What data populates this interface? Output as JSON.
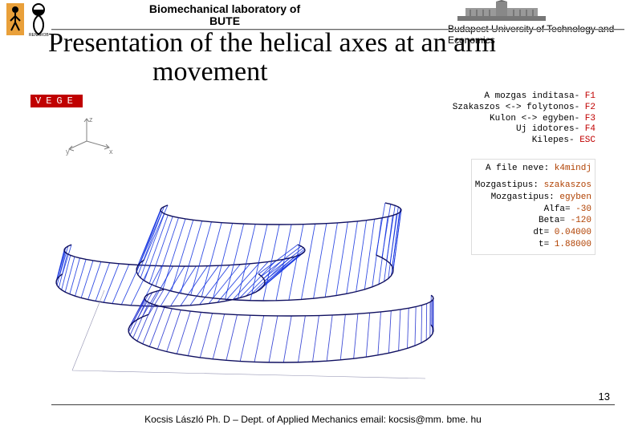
{
  "colors": {
    "vege_bg": "#c00000",
    "vege_fg": "#ffffff",
    "fkey": "#c00000",
    "kval": "#b04000",
    "axis_line": "#808080",
    "axis_label": "#808080",
    "helix_blue": "#1030e0",
    "helix_dark": "#101060",
    "grid": "#9090b0",
    "border": "#cccccc"
  },
  "header": {
    "lab_line1": "Biomechanical laboratory of",
    "lab_line2": "BUTE",
    "institution": "Budapest University of Technology and Economics"
  },
  "title": {
    "line1": "Presentation of the helical axes at an arm",
    "line2": "movement"
  },
  "figure": {
    "vege_label": "VEGE",
    "axis_labels": {
      "x": "x",
      "y": "y",
      "z": "z"
    },
    "legend_top": [
      {
        "label": "A mozgas inditasa-",
        "key": "F1"
      },
      {
        "label": "Szakaszos <-> folytonos-",
        "key": "F2"
      },
      {
        "label": "Kulon <-> egyben-",
        "key": "F3"
      },
      {
        "label": "Uj idotores-",
        "key": "F4"
      },
      {
        "label": "Kilepes-",
        "key": "ESC"
      }
    ],
    "legend_bottom": {
      "file_label": "A file neve:",
      "file_value": "k4mindj",
      "params": [
        {
          "label": "Mozgastipus:",
          "value": "szakaszos"
        },
        {
          "label": "Mozgastipus:",
          "value": "egyben"
        },
        {
          "label": "Alfa=",
          "value": "-30"
        },
        {
          "label": "Beta=",
          "value": "-120"
        },
        {
          "label": "dt=",
          "value": "0.04000"
        },
        {
          "label": "t=",
          "value": "1.88000"
        }
      ]
    },
    "helix": {
      "type": "ruled-surface",
      "surfaces": 3,
      "strokes_per_surface": 40,
      "line_width": 0.9,
      "bands": [
        {
          "cx1": 150,
          "cy1": 180,
          "rx1": 130,
          "ry1": 30,
          "cx2": 180,
          "cy2": 140,
          "rx2": 150,
          "ry2": 20,
          "a0": -20,
          "a1": 200,
          "color": "#1030e0"
        },
        {
          "cx1": 280,
          "cy1": 165,
          "rx1": 160,
          "ry1": 38,
          "cx2": 300,
          "cy2": 90,
          "rx2": 150,
          "ry2": 18,
          "a0": -30,
          "a1": 200,
          "color": "#1030e0"
        },
        {
          "cx1": 300,
          "cy1": 240,
          "rx1": 190,
          "ry1": 40,
          "cx2": 310,
          "cy2": 200,
          "rx2": 180,
          "ry2": 22,
          "a0": -10,
          "a1": 210,
          "color": "#2030d0"
        }
      ]
    }
  },
  "footer": {
    "text": "Kocsis László Ph. D – Dept. of Applied Mechanics  email: kocsis@mm. bme. hu",
    "page_number": "13"
  }
}
